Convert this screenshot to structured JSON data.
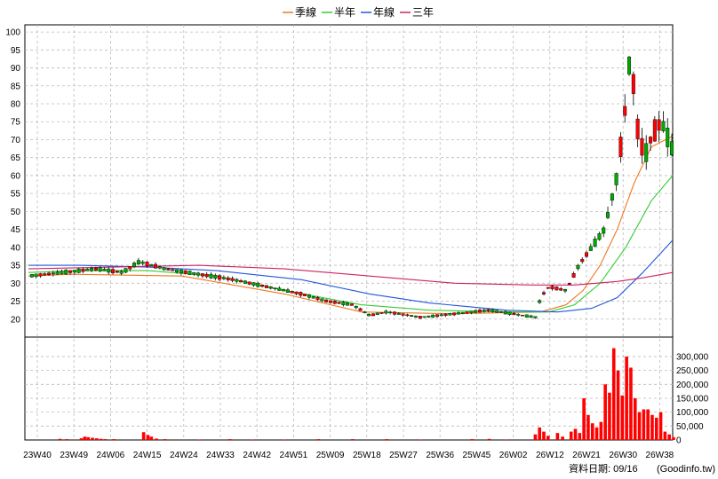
{
  "chart_data": {
    "type": "candlestick",
    "legend": [
      {
        "name": "季線",
        "color": "#f07820"
      },
      {
        "name": "半年",
        "color": "#33cc33"
      },
      {
        "name": "年線",
        "color": "#2255dd"
      },
      {
        "name": "三年",
        "color": "#cc2266"
      }
    ],
    "price_axis": {
      "ylim": [
        15,
        102
      ],
      "ticks": [
        20,
        25,
        30,
        35,
        40,
        45,
        50,
        55,
        60,
        65,
        70,
        75,
        80,
        85,
        90,
        95,
        100
      ]
    },
    "volume_axis": {
      "ylim": [
        0,
        370000
      ],
      "tick_labels": [
        "0",
        "50,000",
        "100,000",
        "150,000",
        "200,000",
        "250,000",
        "300,000"
      ],
      "tick_values": [
        0,
        50000,
        100000,
        150000,
        200000,
        250000,
        300000
      ]
    },
    "x_axis": {
      "ticks": [
        "23W40",
        "23W49",
        "24W06",
        "24W15",
        "24W24",
        "24W33",
        "24W42",
        "24W51",
        "25W09",
        "25W18",
        "25W27",
        "25W36",
        "25W45",
        "26W02",
        "26W12",
        "26W21",
        "26W30",
        "26W38"
      ]
    },
    "ma": {
      "季線": [
        [
          0,
          32
        ],
        [
          50,
          32.5
        ],
        [
          180,
          32
        ],
        [
          300,
          27
        ],
        [
          390,
          22
        ],
        [
          500,
          21.5
        ],
        [
          600,
          22
        ],
        [
          630,
          24
        ],
        [
          650,
          28
        ],
        [
          670,
          35
        ],
        [
          690,
          45
        ],
        [
          710,
          58
        ],
        [
          730,
          68
        ],
        [
          755,
          71
        ]
      ],
      "半年": [
        [
          0,
          33
        ],
        [
          60,
          33.5
        ],
        [
          140,
          33.5
        ],
        [
          220,
          32
        ],
        [
          300,
          28
        ],
        [
          390,
          24
        ],
        [
          470,
          22.5
        ],
        [
          560,
          22
        ],
        [
          610,
          22
        ],
        [
          640,
          24
        ],
        [
          670,
          30
        ],
        [
          700,
          40
        ],
        [
          730,
          53
        ],
        [
          755,
          60
        ]
      ],
      "年線": [
        [
          0,
          35
        ],
        [
          60,
          35
        ],
        [
          140,
          34.5
        ],
        [
          220,
          33.5
        ],
        [
          320,
          31
        ],
        [
          400,
          27
        ],
        [
          470,
          24.5
        ],
        [
          560,
          22.5
        ],
        [
          620,
          22
        ],
        [
          660,
          23
        ],
        [
          690,
          26
        ],
        [
          720,
          33
        ],
        [
          755,
          42
        ]
      ],
      "三年": [
        [
          0,
          34
        ],
        [
          100,
          34.5
        ],
        [
          200,
          35
        ],
        [
          300,
          34
        ],
        [
          400,
          32
        ],
        [
          500,
          30
        ],
        [
          590,
          29.5
        ],
        [
          640,
          29.5
        ],
        [
          690,
          30.5
        ],
        [
          720,
          31.5
        ],
        [
          755,
          33
        ]
      ]
    },
    "candles_segments": [
      [
        0,
        32
      ],
      [
        40,
        33
      ],
      [
        80,
        34
      ],
      [
        110,
        33
      ],
      [
        130,
        36
      ],
      [
        160,
        34
      ],
      [
        200,
        32.5
      ],
      [
        240,
        31
      ],
      [
        280,
        29
      ],
      [
        320,
        27
      ],
      [
        350,
        25
      ],
      [
        380,
        24
      ],
      [
        400,
        21
      ],
      [
        420,
        22
      ],
      [
        460,
        20.5
      ],
      [
        500,
        21.5
      ],
      [
        540,
        22.5
      ],
      [
        580,
        21
      ],
      [
        595,
        20.5
      ],
      [
        600,
        26
      ],
      [
        610,
        29
      ],
      [
        630,
        28
      ],
      [
        645,
        35
      ],
      [
        660,
        40
      ],
      [
        675,
        45
      ],
      [
        690,
        60
      ],
      [
        700,
        80
      ],
      [
        706,
        96
      ],
      [
        712,
        75
      ],
      [
        722,
        65
      ],
      [
        732,
        72
      ],
      [
        742,
        75
      ],
      [
        750,
        70
      ],
      [
        755,
        67
      ]
    ],
    "volume_bars": [
      [
        37,
        4000
      ],
      [
        45,
        3000
      ],
      [
        62,
        6000
      ],
      [
        66,
        12000
      ],
      [
        70,
        10000
      ],
      [
        75,
        8000
      ],
      [
        80,
        6000
      ],
      [
        85,
        4000
      ],
      [
        90,
        3000
      ],
      [
        100,
        3000
      ],
      [
        135,
        28000
      ],
      [
        140,
        18000
      ],
      [
        144,
        12000
      ],
      [
        150,
        5000
      ],
      [
        160,
        3000
      ],
      [
        200,
        2000
      ],
      [
        236,
        3000
      ],
      [
        262,
        2000
      ],
      [
        300,
        2000
      ],
      [
        340,
        3000
      ],
      [
        380,
        3000
      ],
      [
        420,
        3000
      ],
      [
        460,
        2000
      ],
      [
        520,
        3000
      ],
      [
        540,
        4000
      ],
      [
        560,
        2000
      ],
      [
        594,
        20000
      ],
      [
        599,
        45000
      ],
      [
        604,
        30000
      ],
      [
        609,
        15000
      ],
      [
        620,
        25000
      ],
      [
        626,
        12000
      ],
      [
        636,
        30000
      ],
      [
        641,
        40000
      ],
      [
        646,
        25000
      ],
      [
        651,
        150000
      ],
      [
        656,
        90000
      ],
      [
        661,
        60000
      ],
      [
        666,
        45000
      ],
      [
        671,
        65000
      ],
      [
        676,
        200000
      ],
      [
        681,
        170000
      ],
      [
        686,
        330000
      ],
      [
        691,
        250000
      ],
      [
        696,
        160000
      ],
      [
        701,
        300000
      ],
      [
        706,
        260000
      ],
      [
        711,
        150000
      ],
      [
        716,
        100000
      ],
      [
        721,
        110000
      ],
      [
        726,
        110000
      ],
      [
        731,
        90000
      ],
      [
        736,
        80000
      ],
      [
        741,
        100000
      ],
      [
        746,
        30000
      ],
      [
        751,
        20000
      ],
      [
        756,
        10000
      ]
    ]
  },
  "footer": {
    "date_label": "資料日期: 09/16",
    "source": "(Goodinfo.tw)"
  },
  "colors": {
    "up": "#ff0000",
    "down": "#00aa00",
    "grid": "#bbbbbb",
    "axis": "#000000"
  }
}
